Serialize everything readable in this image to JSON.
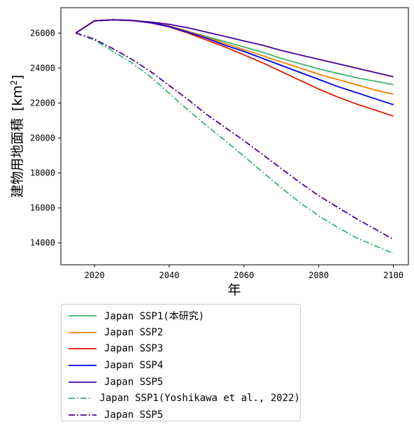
{
  "chart_data": {
    "type": "line",
    "title": "",
    "xlabel": "年",
    "ylabel_main": "建物用地面積",
    "ylabel_unit_open": "[km",
    "ylabel_unit_sup": "2",
    "ylabel_unit_close": "]",
    "xlim": [
      2011,
      2104
    ],
    "ylim": [
      12750,
      27450
    ],
    "xticks": [
      2020,
      2040,
      2060,
      2080,
      2100
    ],
    "yticks": [
      14000,
      16000,
      18000,
      20000,
      22000,
      24000,
      26000
    ],
    "grid": false,
    "legend_placement": "below",
    "x": [
      2015,
      2020,
      2025,
      2030,
      2035,
      2040,
      2045,
      2050,
      2055,
      2060,
      2065,
      2070,
      2075,
      2080,
      2085,
      2090,
      2095,
      2100
    ],
    "series": [
      {
        "name": "Japan SSP1(本研究)",
        "color": "#3cb371",
        "dash": "solid",
        "values": [
          26000,
          26700,
          26760,
          26720,
          26600,
          26400,
          26100,
          25800,
          25500,
          25200,
          24900,
          24550,
          24250,
          23950,
          23700,
          23450,
          23250,
          23050
        ]
      },
      {
        "name": "Japan SSP2",
        "color": "#ee8000",
        "dash": "solid",
        "values": [
          26000,
          26700,
          26760,
          26720,
          26600,
          26400,
          26100,
          25750,
          25400,
          25050,
          24700,
          24350,
          24000,
          23650,
          23350,
          23050,
          22750,
          22500
        ]
      },
      {
        "name": "Japan SSP3",
        "color": "#dd1a00",
        "dash": "solid",
        "values": [
          26000,
          26700,
          26760,
          26720,
          26580,
          26350,
          26000,
          25600,
          25200,
          24750,
          24300,
          23800,
          23300,
          22800,
          22350,
          21950,
          21600,
          21250
        ]
      },
      {
        "name": "Japan SSP4",
        "color": "#0000ee",
        "dash": "solid",
        "values": [
          26000,
          26700,
          26760,
          26720,
          26600,
          26370,
          26050,
          25700,
          25300,
          24950,
          24550,
          24150,
          23750,
          23350,
          22950,
          22600,
          22250,
          21900
        ]
      },
      {
        "name": "Japan SSP5",
        "color": "#4b0096",
        "dash": "solid",
        "values": [
          26000,
          26700,
          26760,
          26720,
          26630,
          26500,
          26300,
          26050,
          25800,
          25550,
          25300,
          25000,
          24750,
          24500,
          24250,
          24000,
          23750,
          23500
        ]
      },
      {
        "name": "Japan SSP1(Yoshikawa et al., 2022)",
        "color": "#3cb371",
        "dash": "dashdot",
        "values": [
          26000,
          25600,
          24950,
          24300,
          23500,
          22550,
          21600,
          20700,
          19850,
          18950,
          18050,
          17150,
          16300,
          15550,
          14900,
          14300,
          13850,
          13400
        ]
      },
      {
        "name": "Japan SSP5",
        "color": "#4b0096",
        "dash": "dashdot",
        "values": [
          26000,
          25650,
          25100,
          24500,
          23800,
          23000,
          22200,
          21350,
          20600,
          19850,
          19050,
          18250,
          17450,
          16700,
          16050,
          15400,
          14800,
          14200
        ]
      }
    ]
  }
}
